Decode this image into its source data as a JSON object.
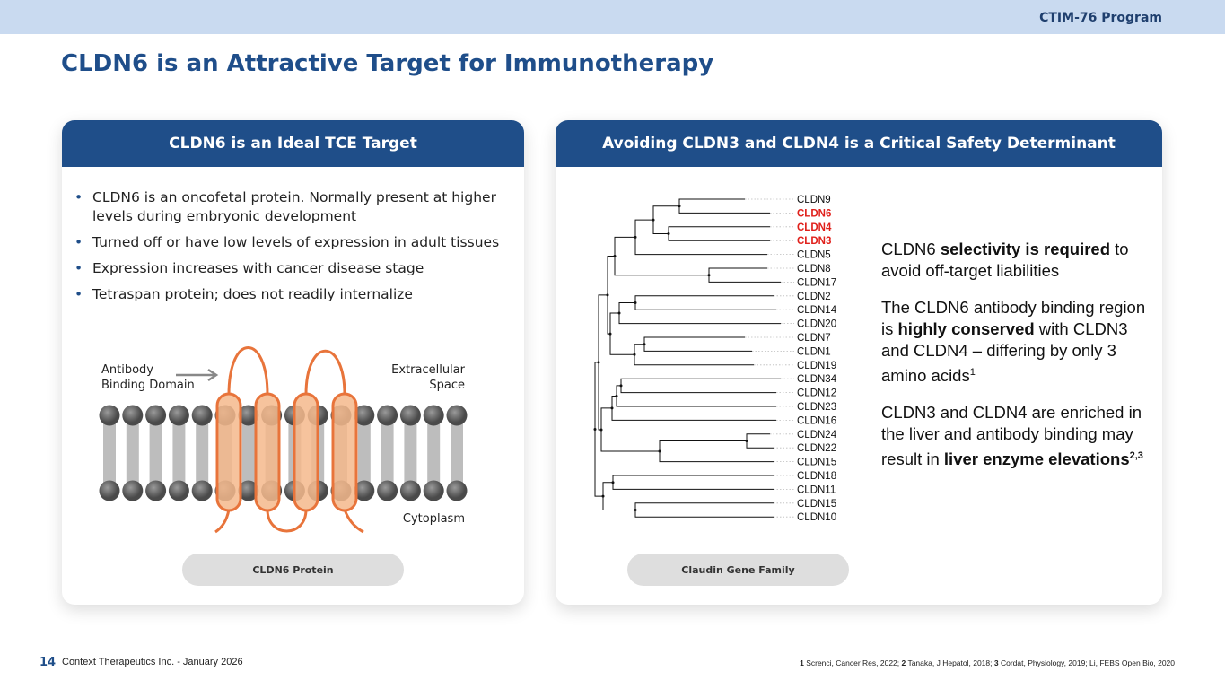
{
  "header": {
    "program": "CTIM-76 Program",
    "title": "CLDN6 is an Attractive Target for Immunotherapy"
  },
  "left_panel": {
    "title": "CLDN6 is an Ideal TCE Target",
    "bullets": [
      "CLDN6 is an oncofetal protein. Normally present at higher levels during embryonic development",
      "Turned off or have low levels of expression in adult tissues",
      "Expression increases with cancer disease stage",
      "Tetraspan protein; does not readily internalize"
    ],
    "diagram": {
      "antibody_label": "Antibody Binding Domain",
      "extracellular_label": "Extracellular Space",
      "cytoplasm_label": "Cytoplasm"
    },
    "caption": "CLDN6 Protein"
  },
  "right_panel": {
    "title": "Avoiding CLDN3 and CLDN4 is a Critical Safety Determinant",
    "leaves": [
      {
        "label": "CLDN9"
      },
      {
        "label": "CLDN6",
        "color": "#e0201b"
      },
      {
        "label": "CLDN4",
        "color": "#e0201b"
      },
      {
        "label": "CLDN3",
        "color": "#e0201b"
      },
      {
        "label": "CLDN5"
      },
      {
        "label": "CLDN8"
      },
      {
        "label": "CLDN17"
      },
      {
        "label": "CLDN2"
      },
      {
        "label": "CLDN14"
      },
      {
        "label": "CLDN20"
      },
      {
        "label": "CLDN7"
      },
      {
        "label": "CLDN1"
      },
      {
        "label": "CLDN19"
      },
      {
        "label": "CLDN34"
      },
      {
        "label": "CLDN12"
      },
      {
        "label": "CLDN23"
      },
      {
        "label": "CLDN16"
      },
      {
        "label": "CLDN24"
      },
      {
        "label": "CLDN22"
      },
      {
        "label": "CLDN15"
      },
      {
        "label": "CLDN18"
      },
      {
        "label": "CLDN11"
      },
      {
        "label": "CLDN15"
      },
      {
        "label": "CLDN10"
      }
    ],
    "paragraphs": [
      [
        {
          "text": "CLDN6 "
        },
        {
          "text": "selectivity is required",
          "bold": true
        },
        {
          "text": " to avoid off-target liabilities"
        }
      ],
      [
        {
          "text": "The CLDN6 antibody binding region is "
        },
        {
          "text": "highly conserved",
          "bold": true
        },
        {
          "text": " with CLDN3 and CLDN4 – differing by only 3 amino acids"
        },
        {
          "text": "1",
          "sup": true
        }
      ],
      [
        {
          "text": "CLDN3 and CLDN4 are enriched in the liver and antibody binding may result in "
        },
        {
          "text": "liver enzyme elevations",
          "bold": true
        },
        {
          "text": "2,3",
          "sup": true,
          "bold": true
        }
      ]
    ],
    "caption": "Claudin Gene Family"
  },
  "footer": {
    "page": "14",
    "company": "Context Therapeutics Inc. - January 2026",
    "references": [
      {
        "num": "1",
        "text": " Screnci, Cancer Res, 2022; "
      },
      {
        "num": "2",
        "text": " Tanaka, J Hepatol, 2018; "
      },
      {
        "num": "3",
        "text": " Cordat, Physiology, 2019; Li, FEBS Open Bio, 2020"
      }
    ]
  }
}
